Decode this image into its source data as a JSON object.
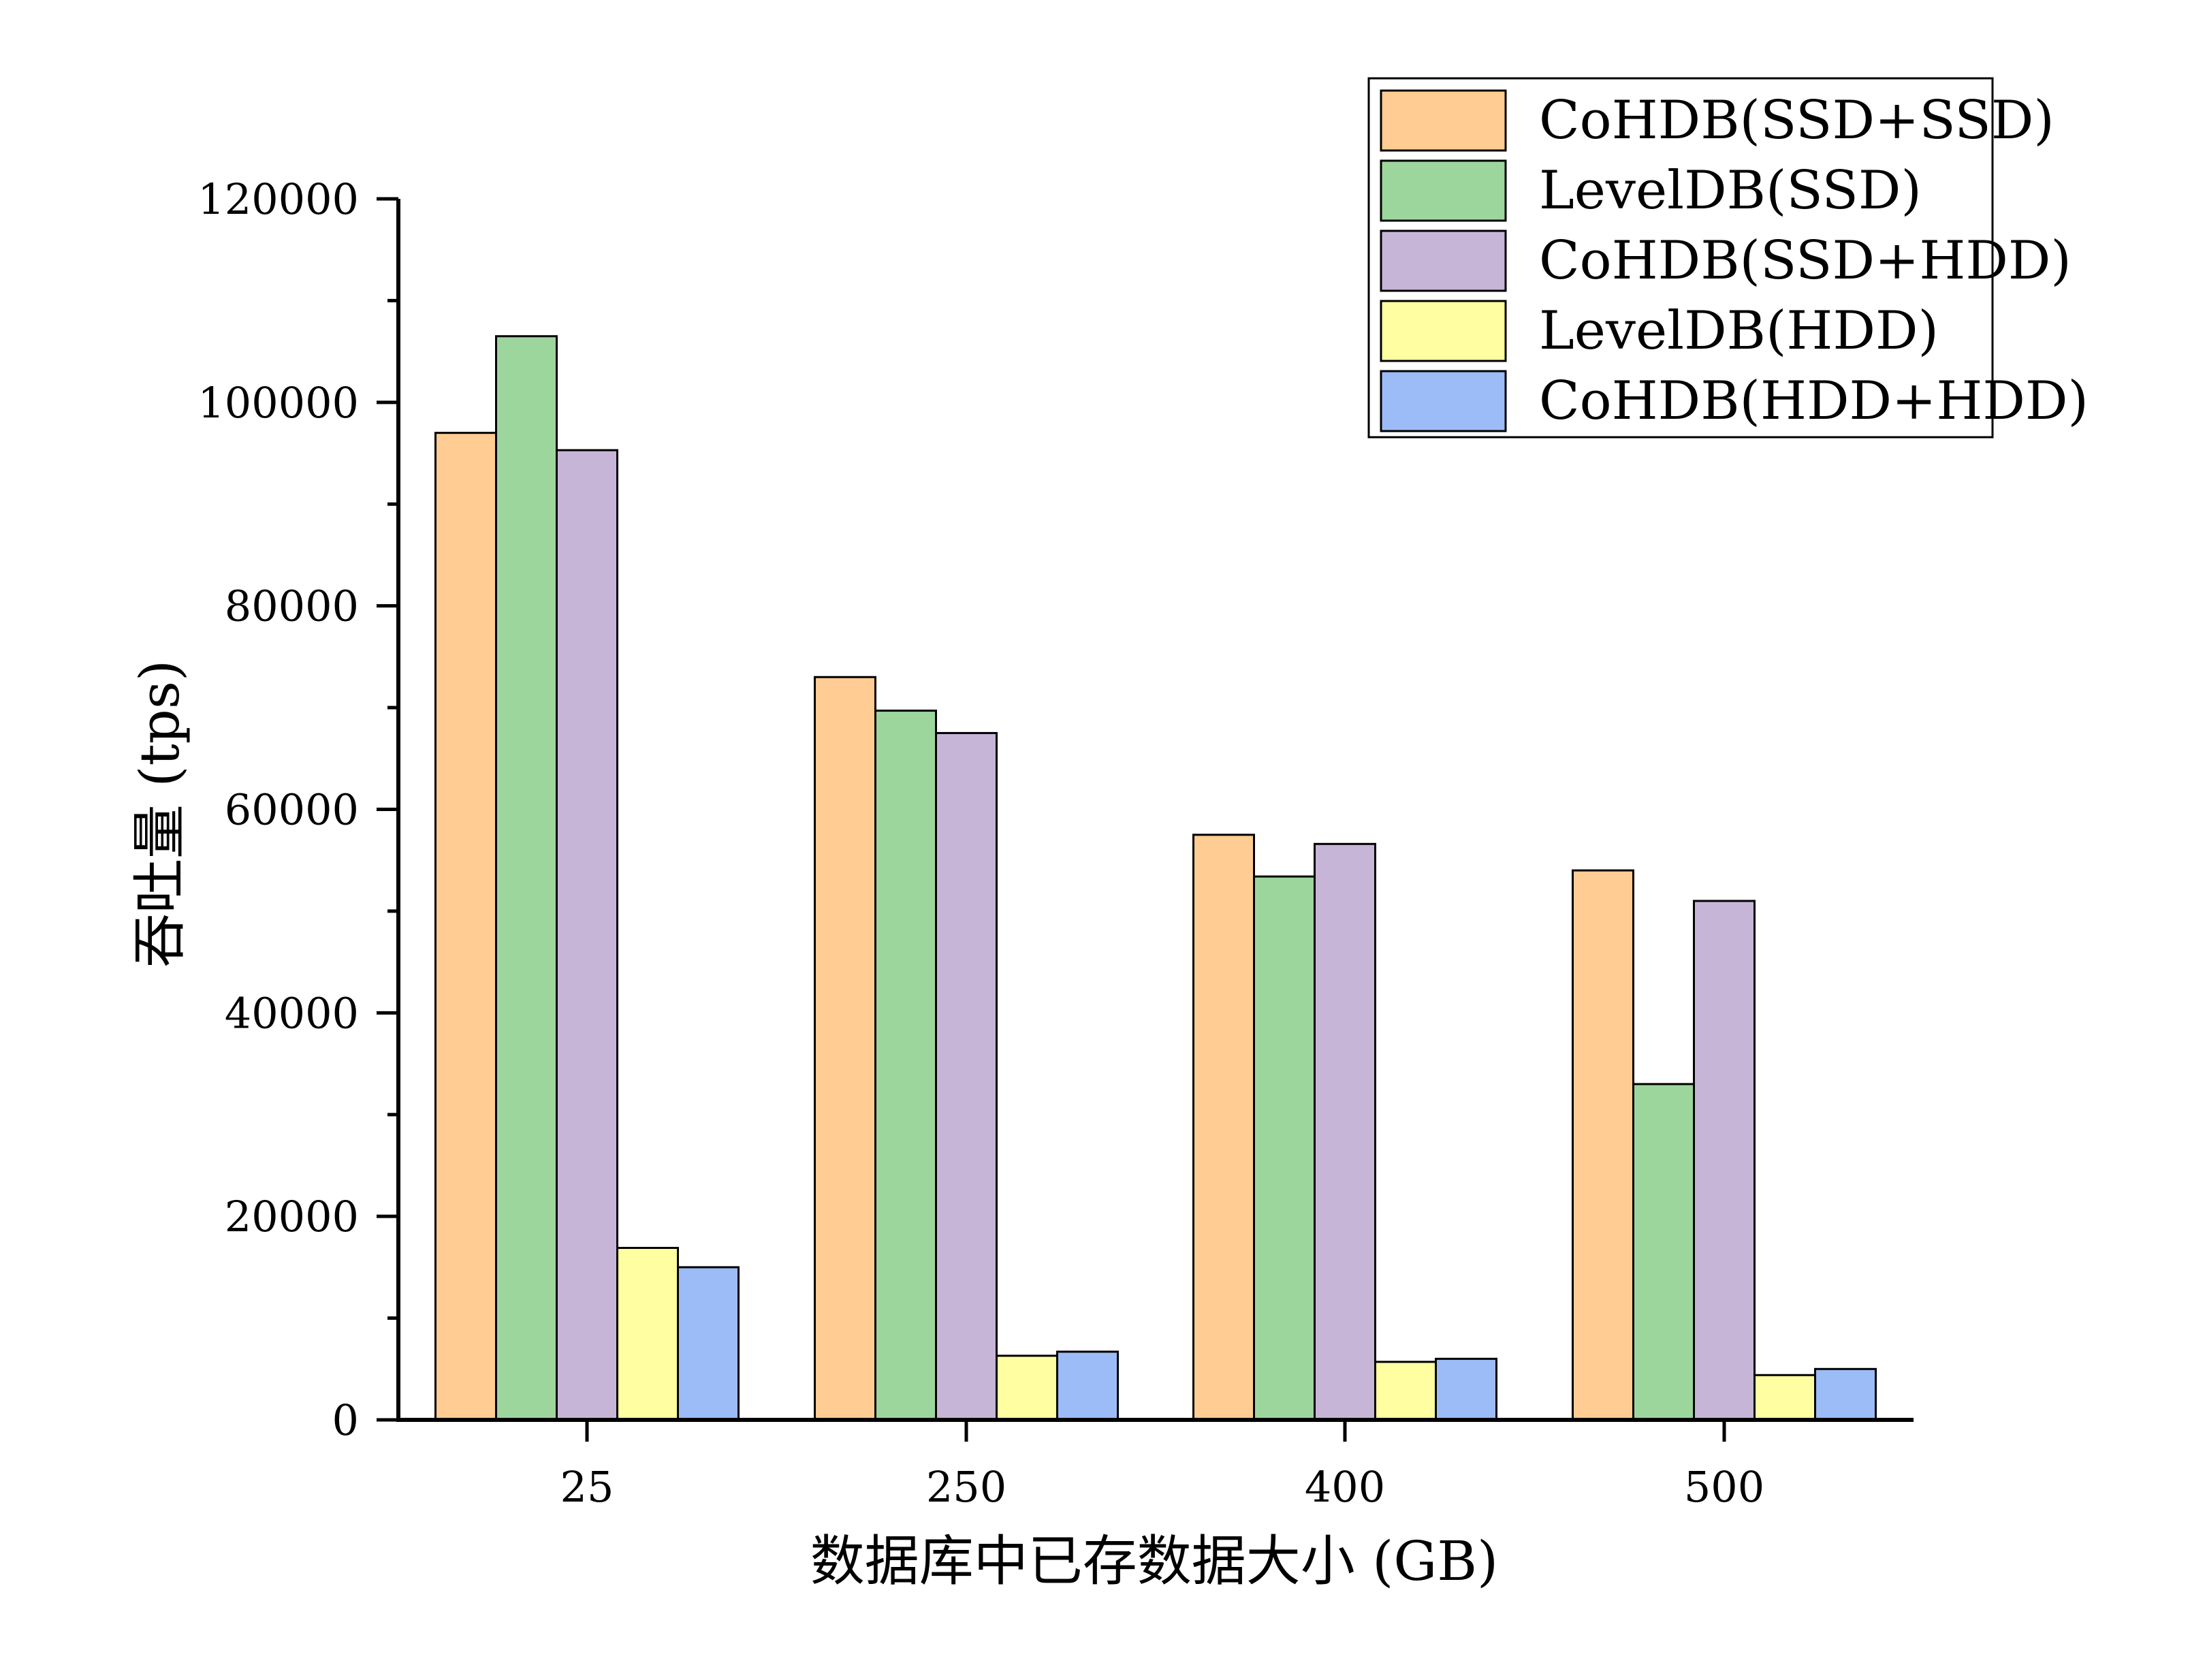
{
  "chart_data": {
    "type": "bar",
    "title": "",
    "xlabel": "数据库中已存数据大小 (GB)",
    "ylabel": "吞吐量 (tps)",
    "categories": [
      "25",
      "250",
      "400",
      "500"
    ],
    "ylim": [
      0,
      120000
    ],
    "yticks": [
      "0",
      "20000",
      "40000",
      "60000",
      "80000",
      "100000",
      "120000"
    ],
    "grid": false,
    "legend_position": "top-right",
    "series": [
      {
        "name": "CoHDB(SSD+SSD)",
        "color": "#FFCC93",
        "values": [
          97000,
          73000,
          57500,
          54000
        ]
      },
      {
        "name": "LevelDB(SSD)",
        "color": "#9DD69C",
        "values": [
          106500,
          69700,
          53400,
          33000
        ]
      },
      {
        "name": "CoHDB(SSD+HDD)",
        "color": "#C7B5D8",
        "values": [
          95300,
          67500,
          56600,
          51000
        ]
      },
      {
        "name": "LevelDB(HDD)",
        "color": "#FFFFA2",
        "values": [
          16900,
          6300,
          5700,
          4400
        ]
      },
      {
        "name": "CoHDB(HDD+HDD)",
        "color": "#9CBCF7",
        "values": [
          15000,
          6700,
          6000,
          5000
        ]
      }
    ]
  }
}
